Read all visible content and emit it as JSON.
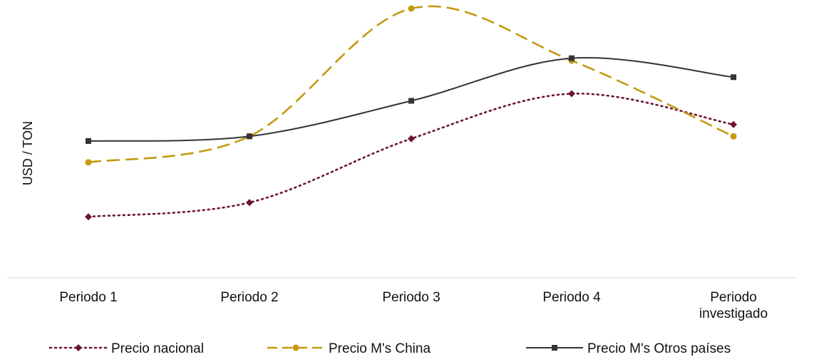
{
  "chart_data": {
    "type": "line",
    "title": "",
    "xlabel": "",
    "ylabel": "USD / TON",
    "categories": [
      "Periodo 1",
      "Periodo 2",
      "Periodo 3",
      "Periodo 4",
      "Periodo investigado"
    ],
    "ylim": [
      0,
      100
    ],
    "grid": false,
    "legend_position": "bottom",
    "smooth": true,
    "series": [
      {
        "name": "Precio nacional",
        "color": "#6b1530",
        "style": "dotted",
        "marker": "diamond",
        "values": [
          12,
          18,
          45,
          64,
          51
        ]
      },
      {
        "name": "Precio M's China",
        "color": "#c39a10",
        "style": "dashed",
        "marker": "circle",
        "values": [
          35,
          46,
          100,
          78,
          46
        ]
      },
      {
        "name": "Precio M's Otros países",
        "color": "#333333",
        "style": "solid",
        "marker": "square",
        "values": [
          44,
          46,
          61,
          79,
          71
        ]
      }
    ]
  }
}
